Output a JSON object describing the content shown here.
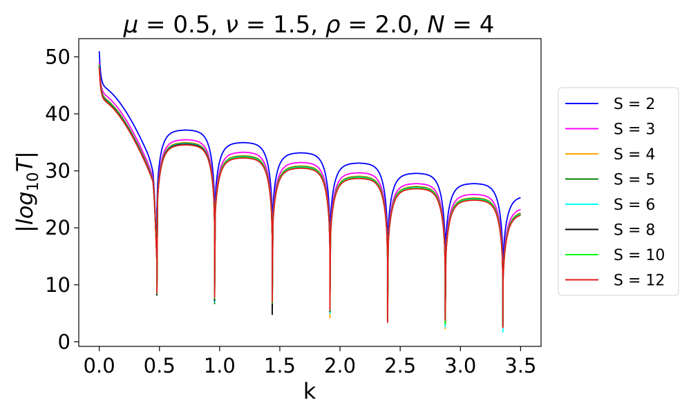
{
  "chart_data": {
    "type": "line",
    "title_parts": {
      "mu_sym": "μ",
      "mu_val": " = 0.5, ",
      "nu_sym": "ν",
      "nu_val": " = 1.5, ",
      "rho_sym": "ρ",
      "rho_val": " = 2.0, ",
      "n_sym": "N",
      "n_val": " = 4"
    },
    "xlabel": "k",
    "ylabel_parts": {
      "pre": "|log",
      "sub": "10",
      "post": "T|"
    },
    "xlim": [
      -0.17,
      3.67
    ],
    "ylim": [
      -0.8,
      53.2
    ],
    "xticks": [
      "0.0",
      "0.5",
      "1.0",
      "1.5",
      "2.0",
      "2.5",
      "3.0",
      "3.5"
    ],
    "yticks": [
      "0",
      "10",
      "20",
      "30",
      "40",
      "50"
    ],
    "xtick_values": [
      0,
      0.5,
      1.0,
      1.5,
      2.0,
      2.5,
      3.0,
      3.5
    ],
    "ytick_values": [
      0,
      10,
      20,
      30,
      40,
      50
    ],
    "grid": false,
    "legend_position": "outside-right",
    "x_range": [
      0,
      3.5
    ],
    "resonances": [
      0.479,
      0.958,
      1.437,
      1.916,
      2.395,
      2.874,
      3.353
    ],
    "series": [
      {
        "name": "S = 2",
        "color": "#0000ff",
        "start": 51.0,
        "base": [
          45.0,
          37.2,
          35.0,
          33.2,
          31.4,
          29.6,
          27.8,
          25.6
        ],
        "dips": [
          23.0,
          22.0,
          22.0,
          21.0,
          20.0,
          19.0,
          3.5
        ]
      },
      {
        "name": "S = 3",
        "color": "#ff00ff",
        "start": 49.0,
        "base": [
          43.7,
          35.5,
          33.3,
          31.5,
          29.7,
          27.8,
          25.9,
          23.5
        ],
        "dips": [
          9.0,
          9.0,
          8.0,
          6.0,
          6.0,
          5.5,
          3.5
        ]
      },
      {
        "name": "S = 4",
        "color": "#ffa500",
        "start": 48.7,
        "base": [
          43.1,
          35.0,
          32.7,
          30.9,
          29.1,
          27.3,
          25.3,
          22.9
        ],
        "dips": [
          8.7,
          7.5,
          7.5,
          4.2,
          4.0,
          2.3,
          2.5
        ]
      },
      {
        "name": "S = 5",
        "color": "#008000",
        "start": 48.6,
        "base": [
          43.0,
          34.9,
          32.6,
          30.8,
          29.0,
          27.2,
          25.2,
          22.8
        ],
        "dips": [
          8.5,
          6.7,
          6.5,
          5.0,
          4.0,
          2.8,
          2.6
        ]
      },
      {
        "name": "S = 6",
        "color": "#00ffff",
        "start": 48.5,
        "base": [
          42.9,
          34.8,
          32.5,
          30.7,
          28.9,
          27.1,
          25.1,
          22.7
        ],
        "dips": [
          8.4,
          7.0,
          6.0,
          5.0,
          3.8,
          2.6,
          1.7
        ]
      },
      {
        "name": "S = 8",
        "color": "#000000",
        "start": 48.4,
        "base": [
          42.8,
          34.7,
          32.4,
          30.6,
          28.8,
          27.0,
          25.0,
          22.6
        ],
        "dips": [
          8.2,
          7.2,
          4.8,
          5.3,
          3.7,
          3.2,
          2.9
        ]
      },
      {
        "name": "S = 10",
        "color": "#00ff00",
        "start": 48.3,
        "base": [
          42.7,
          34.6,
          32.4,
          30.6,
          28.8,
          27.0,
          25.0,
          22.6
        ],
        "dips": [
          8.5,
          7.6,
          6.8,
          5.5,
          4.0,
          3.2,
          3.0
        ]
      },
      {
        "name": "S = 12",
        "color": "#e31a1c",
        "start": 48.2,
        "base": [
          42.6,
          34.6,
          32.3,
          30.5,
          28.7,
          26.9,
          24.9,
          22.5
        ],
        "dips": [
          8.6,
          7.8,
          7.0,
          5.6,
          3.4,
          3.8,
          2.5
        ]
      }
    ]
  }
}
